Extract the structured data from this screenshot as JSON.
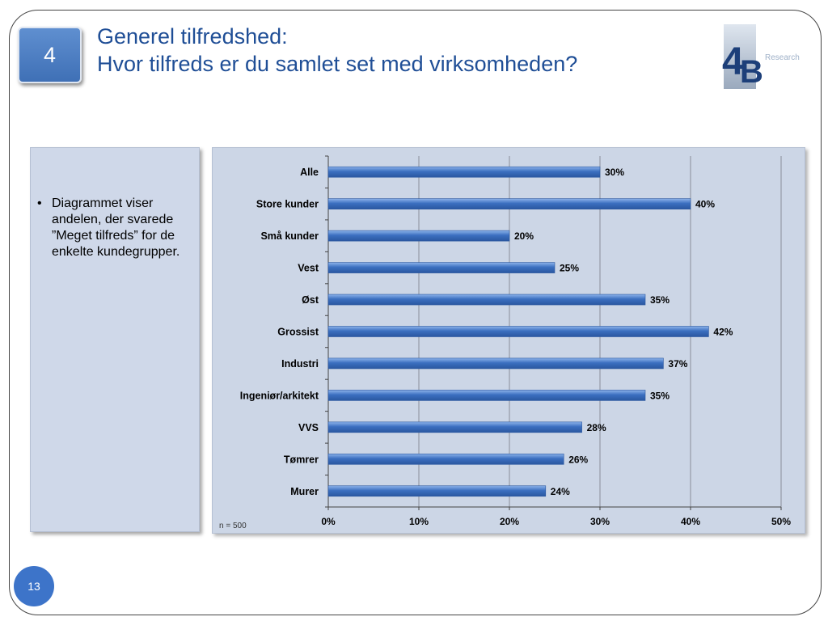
{
  "slide": {
    "section_number": "4",
    "title_line1": "Generel tilfredshed:",
    "title_line2": "Hvor tilfreds er du samlet set med virksomheden?",
    "logo_text": "Research",
    "bullet": "Diagrammet viser andelen, der svarede ”Meget tilfreds” for de enkelte kundegrupper.",
    "n_label": "n = 500",
    "page_number": "13"
  },
  "chart_data": {
    "type": "bar",
    "orientation": "horizontal",
    "categories": [
      "Alle",
      "Store kunder",
      "Små kunder",
      "Vest",
      "Øst",
      "Grossist",
      "Industri",
      "Ingeniør/arkitekt",
      "VVS",
      "Tømrer",
      "Murer"
    ],
    "values": [
      30,
      40,
      20,
      25,
      35,
      42,
      37,
      35,
      28,
      26,
      24
    ],
    "value_labels": [
      "30%",
      "40%",
      "20%",
      "25%",
      "35%",
      "42%",
      "37%",
      "35%",
      "28%",
      "26%",
      "24%"
    ],
    "xlim": [
      0,
      50
    ],
    "ticks": [
      "0%",
      "10%",
      "20%",
      "30%",
      "40%",
      "50%"
    ],
    "tick_values": [
      0,
      10,
      20,
      30,
      40,
      50
    ],
    "grid": true,
    "bar_color": "#3b6fc0"
  }
}
